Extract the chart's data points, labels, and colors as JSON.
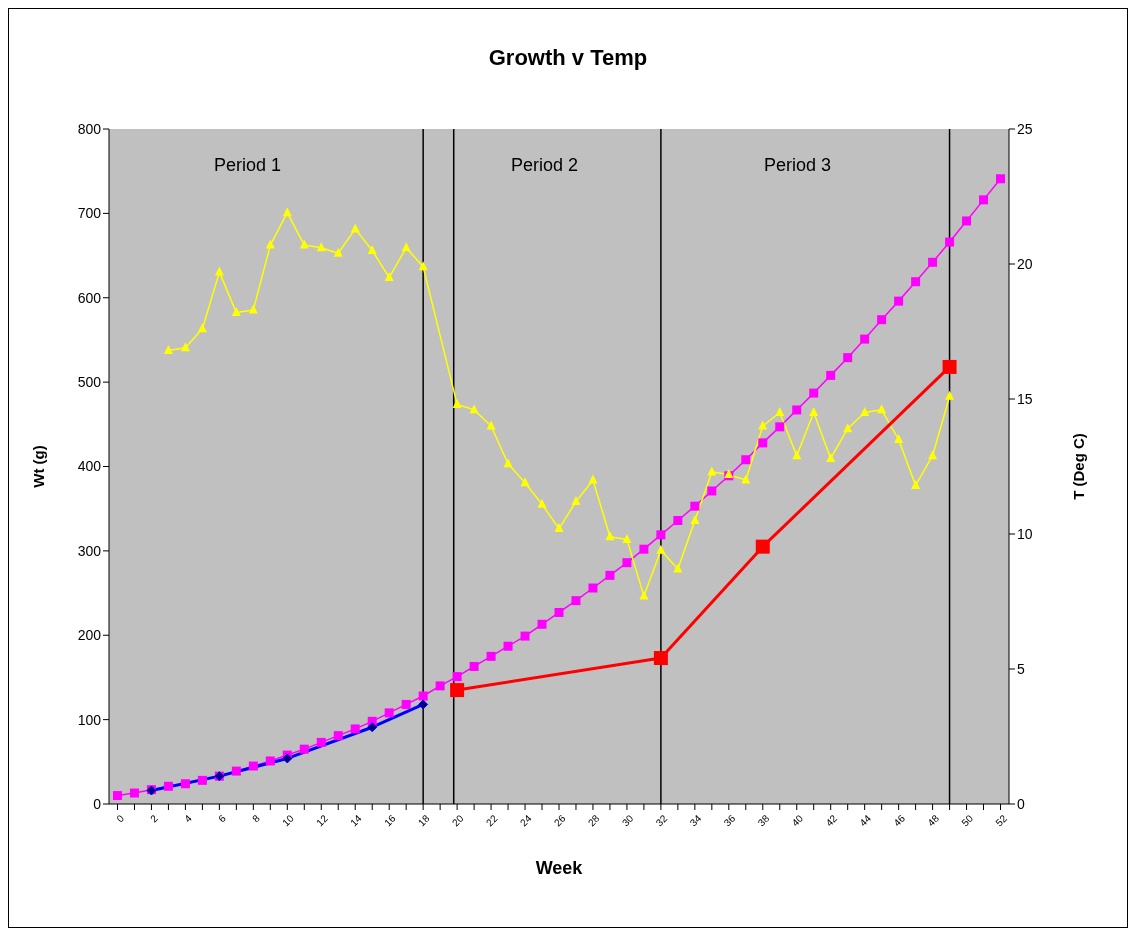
{
  "chart_data": {
    "type": "line",
    "title": "Growth v Temp",
    "xlabel": "Week",
    "ylabel": "Wt (g)",
    "y2label": "T (Deg C)",
    "xlim": [
      -0.5,
      52.5
    ],
    "xticks": [
      0,
      {
        "value": 1,
        "label": null
      },
      2,
      {
        "value": 3,
        "label": null
      },
      4,
      {
        "value": 5,
        "label": null
      },
      6,
      {
        "value": 7,
        "label": null
      },
      8,
      {
        "value": 9,
        "label": null
      },
      10,
      {
        "value": 11,
        "label": null
      },
      12,
      {
        "value": 13,
        "label": null
      },
      14,
      {
        "value": 15,
        "label": null
      },
      16,
      {
        "value": 17,
        "label": null
      },
      18,
      {
        "value": 19,
        "label": null
      },
      20,
      {
        "value": 21,
        "label": null
      },
      22,
      {
        "value": 23,
        "label": null
      },
      24,
      {
        "value": 25,
        "label": null
      },
      26,
      {
        "value": 27,
        "label": null
      },
      28,
      {
        "value": 29,
        "label": null
      },
      30,
      {
        "value": 31,
        "label": null
      },
      32,
      {
        "value": 33,
        "label": null
      },
      34,
      {
        "value": 35,
        "label": null
      },
      36,
      {
        "value": 37,
        "label": null
      },
      38,
      {
        "value": 39,
        "label": null
      },
      40,
      {
        "value": 41,
        "label": null
      },
      42,
      {
        "value": 43,
        "label": null
      },
      44,
      {
        "value": 45,
        "label": null
      },
      46,
      {
        "value": 47,
        "label": null
      },
      48,
      {
        "value": 49,
        "label": null
      },
      50,
      {
        "value": 51,
        "label": null
      },
      52
    ],
    "ylim": [
      0,
      800
    ],
    "yticks": [
      0,
      100,
      200,
      300,
      400,
      500,
      600,
      700,
      800
    ],
    "y2lim": [
      0,
      25
    ],
    "y2ticks": [
      0,
      5,
      10,
      15,
      20,
      25
    ],
    "annotations": [
      "Period 1",
      "Period 2",
      "Period 3"
    ],
    "series": [
      {
        "color": "#ff00ff",
        "marker": "square",
        "x": [
          0,
          1,
          2,
          3,
          4,
          5,
          6,
          7,
          8,
          9,
          10,
          11,
          12,
          13,
          14,
          15,
          16,
          17,
          18,
          19,
          20,
          21,
          22,
          23,
          24,
          25,
          26,
          27,
          28,
          29,
          30,
          31,
          32,
          33,
          34,
          35,
          36,
          37,
          38,
          39,
          40,
          41,
          42,
          43,
          44,
          45,
          46,
          47,
          48,
          49,
          50,
          51,
          52
        ],
        "values": [
          10,
          13,
          17,
          21,
          24,
          28,
          33,
          39,
          45,
          51,
          58,
          65,
          73,
          81,
          89,
          98,
          108,
          118,
          128,
          140,
          151,
          163,
          175,
          187,
          199,
          213,
          227,
          241,
          256,
          271,
          286,
          302,
          319,
          336,
          353,
          371,
          389,
          408,
          428,
          447,
          467,
          487,
          508,
          529,
          551,
          574,
          596,
          619,
          642,
          666,
          691,
          716,
          741
        ]
      },
      {
        "color": "#ffff00",
        "marker": "triangle",
        "axis": "y2",
        "x": [
          3,
          4,
          5,
          6,
          7,
          8,
          9,
          10,
          11,
          12,
          13,
          14,
          15,
          16,
          17,
          18,
          20,
          21,
          22,
          23,
          24,
          25,
          26,
          27,
          28,
          29,
          30,
          31,
          32,
          33,
          34,
          35,
          36,
          37,
          38,
          39,
          40,
          41,
          42,
          43,
          44,
          45,
          46,
          47,
          48,
          49
        ],
        "values": [
          16.8,
          16.9,
          17.6,
          19.7,
          18.2,
          18.3,
          20.7,
          21.9,
          20.7,
          20.6,
          20.4,
          21.3,
          20.5,
          19.5,
          20.6,
          19.9,
          14.8,
          14.6,
          14.0,
          12.6,
          11.9,
          11.1,
          10.2,
          11.2,
          12.0,
          9.9,
          9.8,
          7.7,
          9.4,
          8.7,
          10.5,
          12.3,
          12.2,
          12.0,
          14.0,
          14.5,
          12.9,
          14.5,
          12.8,
          13.9,
          14.5,
          14.6,
          13.5,
          11.8,
          12.9,
          15.1
        ]
      },
      {
        "color": "#0000ff",
        "marker": "diamond",
        "x": [
          2,
          6,
          10,
          15,
          18
        ],
        "values": [
          16,
          33,
          54,
          91,
          118
        ]
      },
      {
        "color": "#ff0000",
        "marker": "square",
        "x": [
          20,
          32,
          38,
          49
        ],
        "values": [
          135,
          173,
          305,
          518
        ]
      }
    ],
    "ref_lines": [
      {
        "axis": "x",
        "value": 18
      },
      {
        "axis": "x",
        "value": 19.8
      },
      {
        "axis": "x",
        "value": 32
      },
      {
        "axis": "x",
        "value": 49
      }
    ]
  }
}
